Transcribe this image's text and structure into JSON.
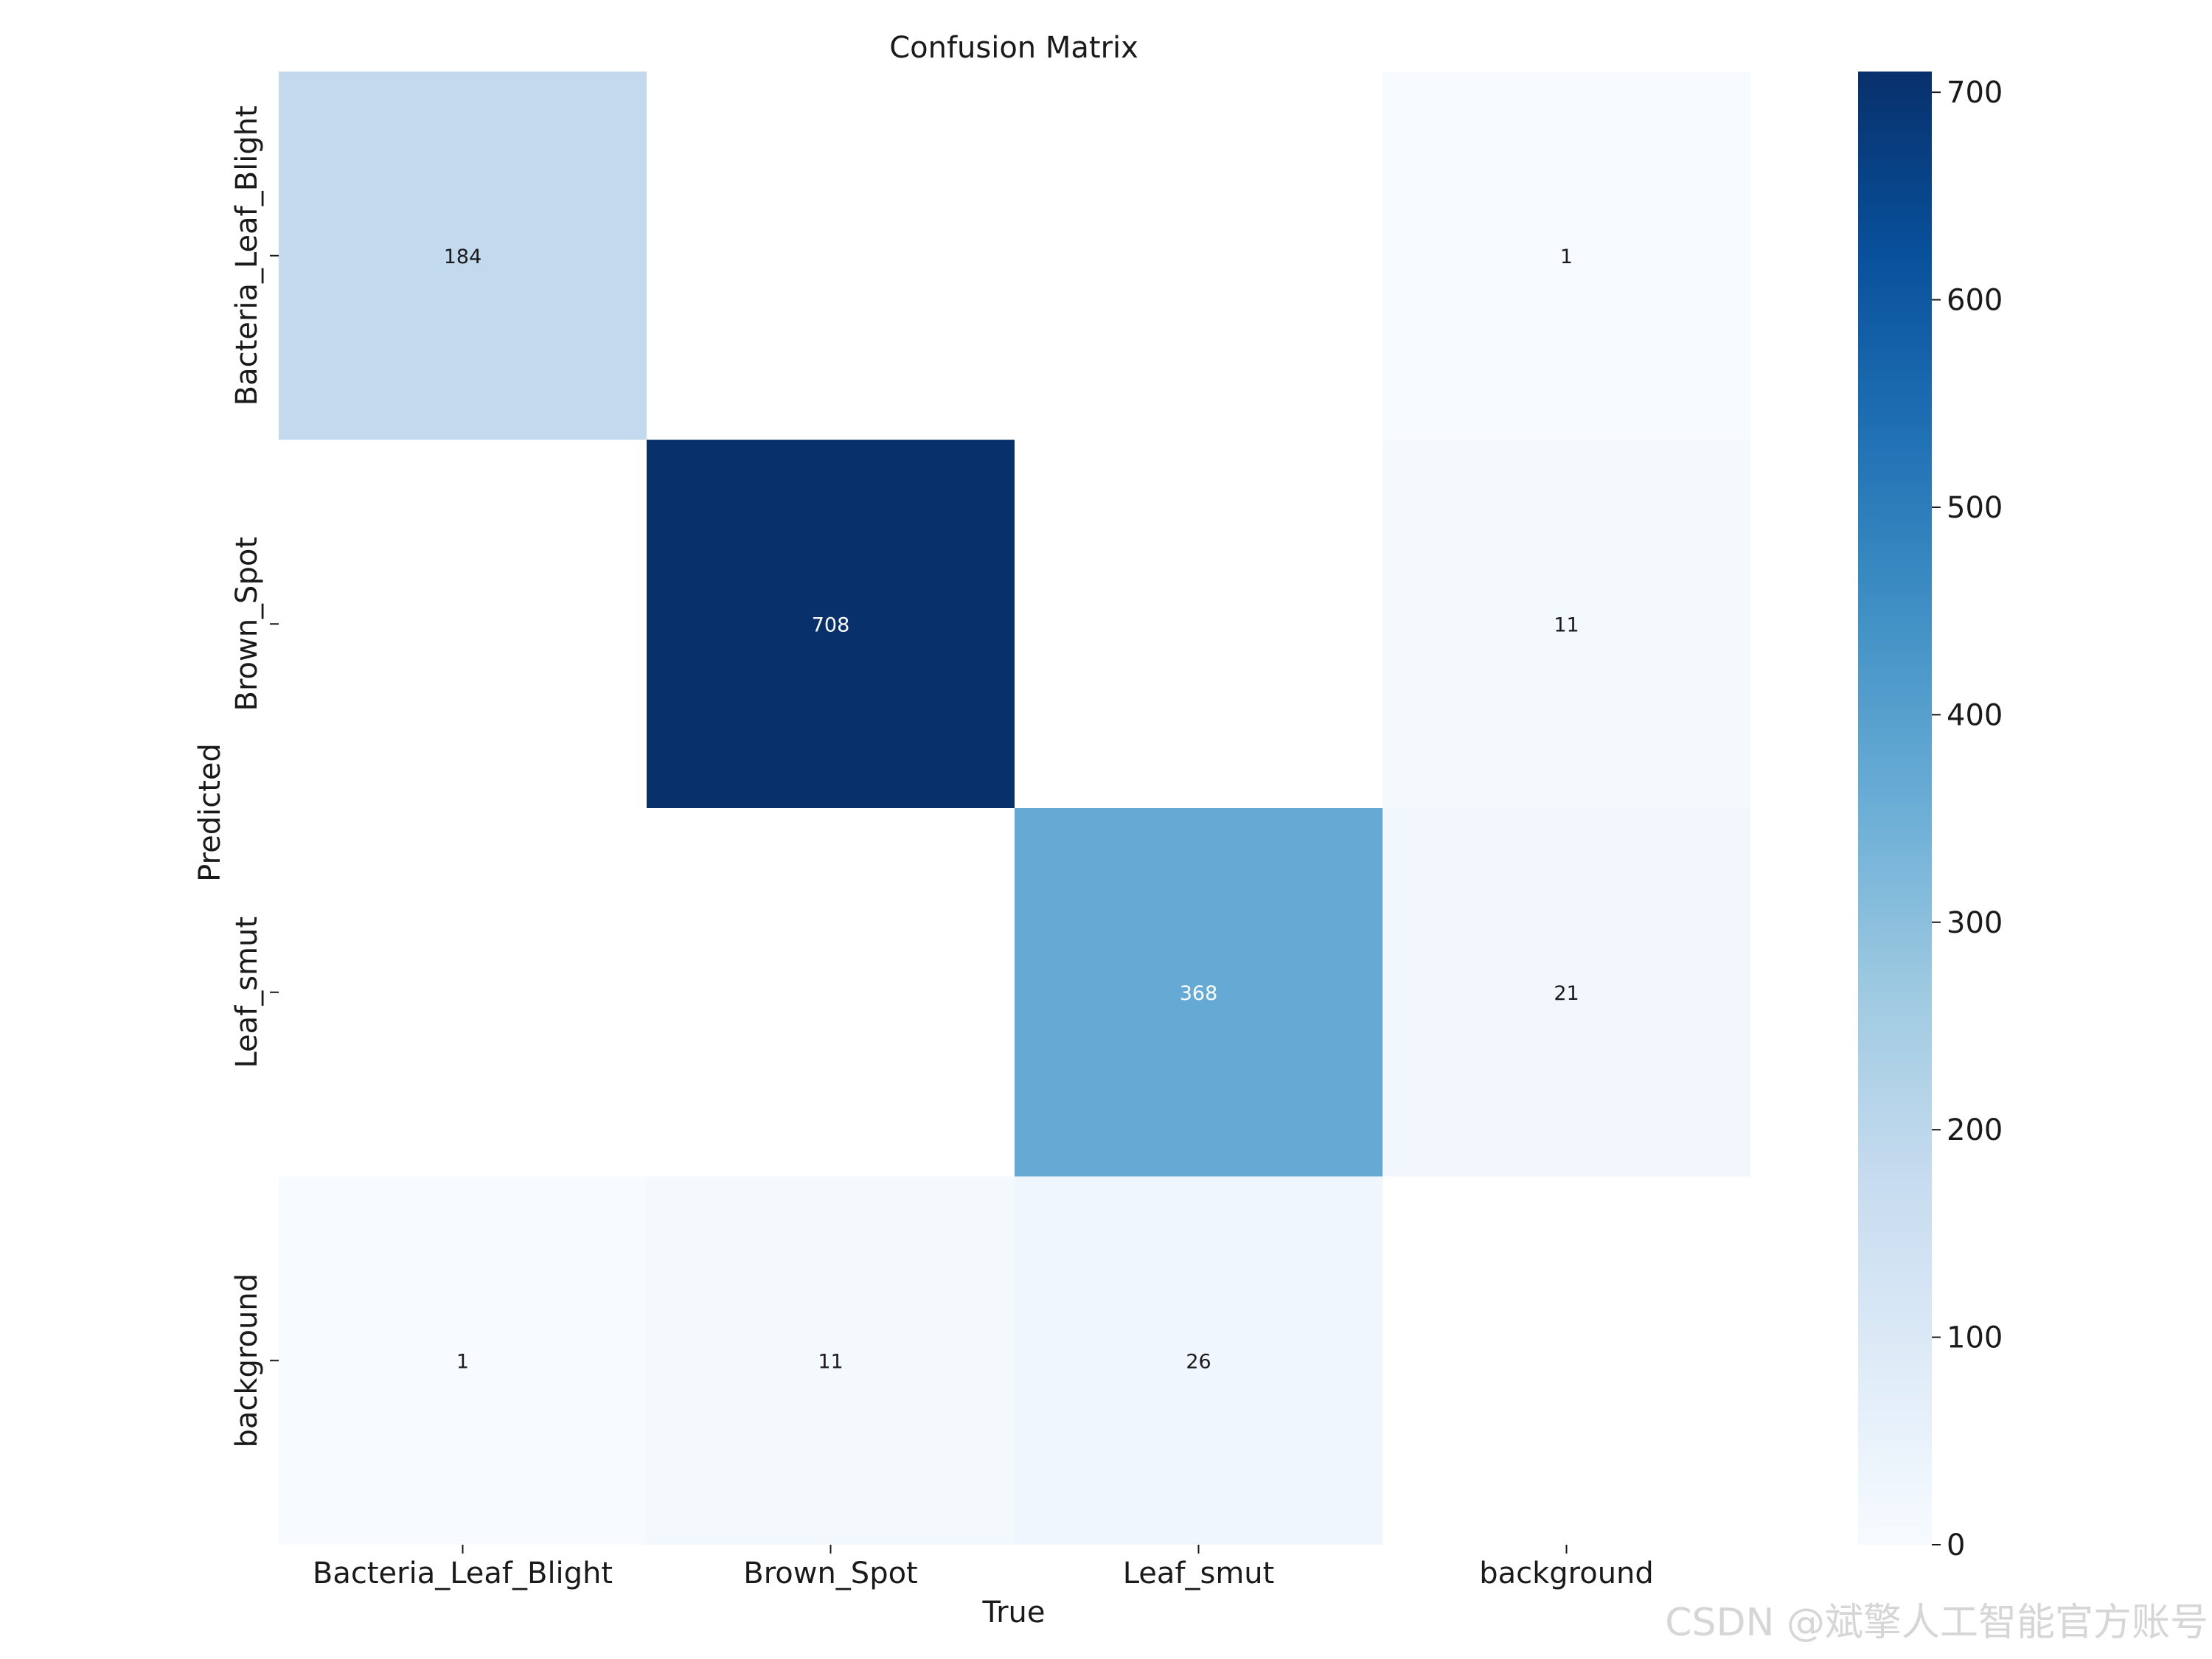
{
  "watermark": "CSDN @斌擎人工智能官方账号",
  "chart_data": {
    "type": "heatmap",
    "title": "Confusion Matrix",
    "xlabel": "True",
    "ylabel": "Predicted",
    "x_categories": [
      "Bacteria_Leaf_Blight",
      "Brown_Spot",
      "Leaf_smut",
      "background"
    ],
    "y_categories": [
      "Bacteria_Leaf_Blight",
      "Brown_Spot",
      "Leaf_smut",
      "background"
    ],
    "values": [
      [
        184,
        null,
        null,
        1
      ],
      [
        null,
        708,
        null,
        11
      ],
      [
        null,
        null,
        368,
        21
      ],
      [
        1,
        11,
        26,
        null
      ]
    ],
    "colormap": "Blues",
    "colorbar": {
      "range": [
        0,
        710
      ],
      "ticks": [
        0,
        100,
        200,
        300,
        400,
        500,
        600,
        700
      ]
    },
    "colors": {
      "low": "#f7fbff",
      "high": "#08306b"
    }
  }
}
